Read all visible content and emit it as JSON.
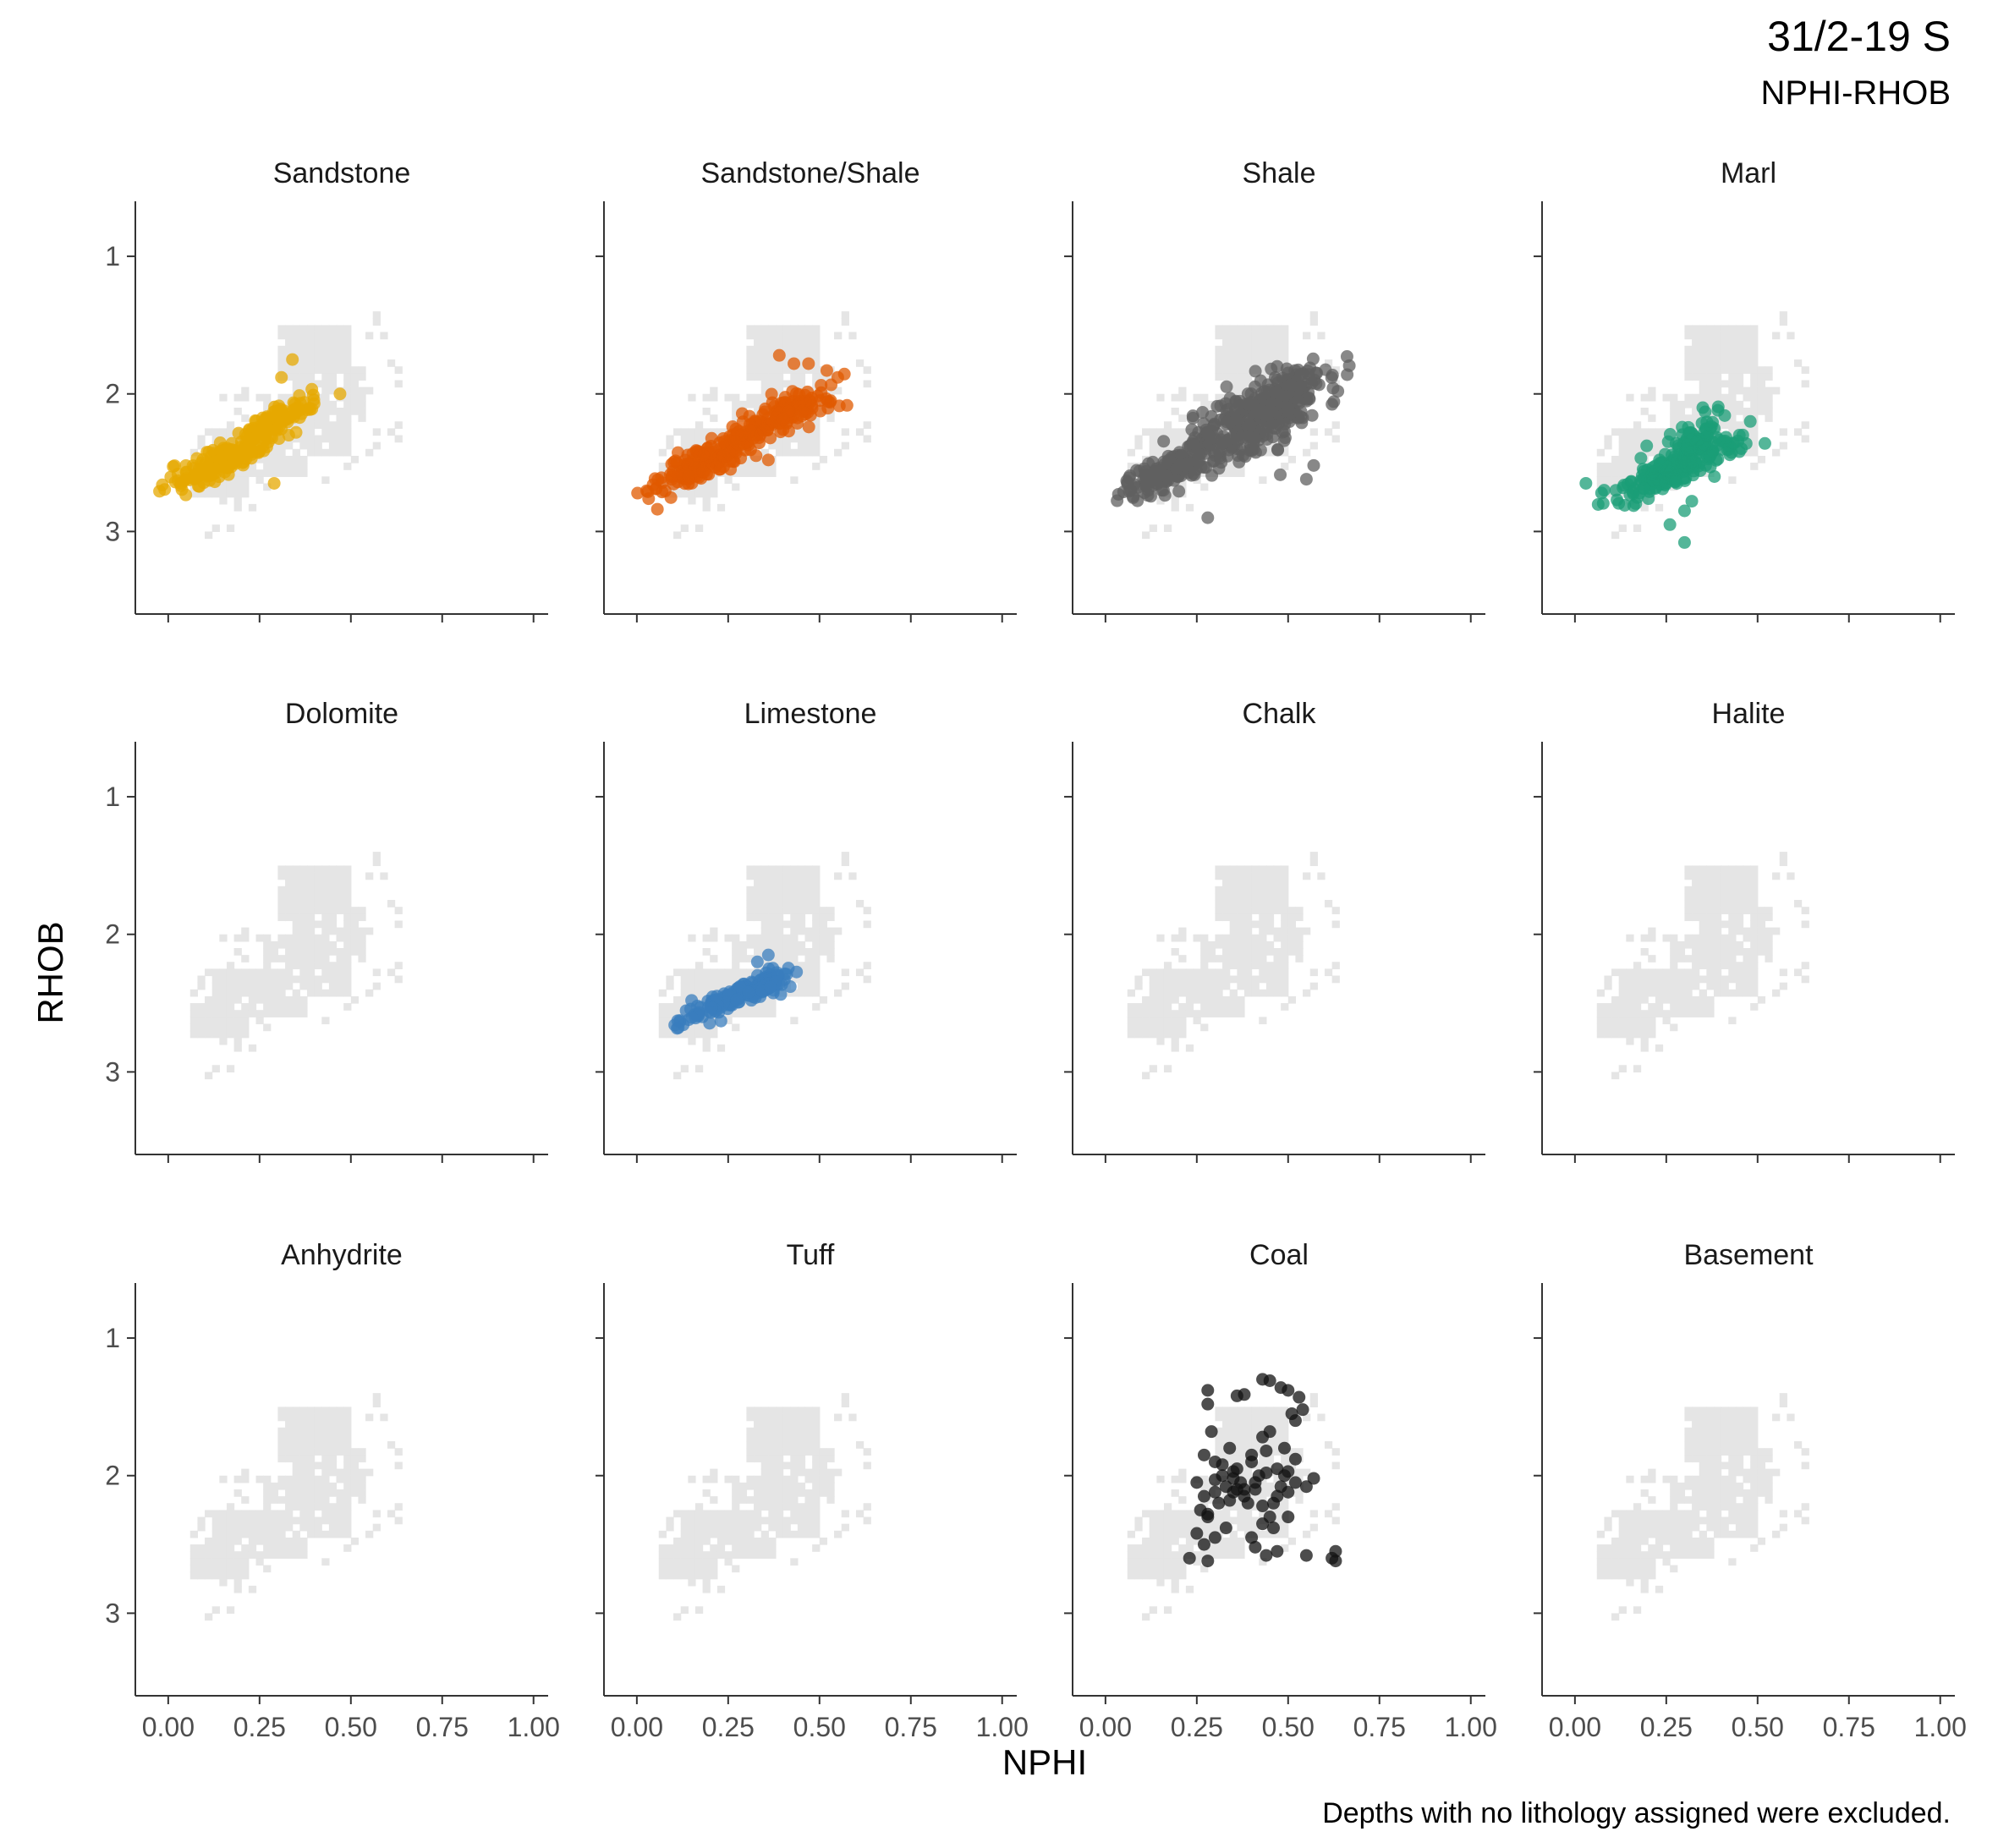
{
  "title": "31/2-19 S",
  "subtitle": "NPHI-RHOB",
  "caption": "Depths with no lithology assigned were excluded.",
  "chart_data": {
    "type": "scatter",
    "facet_layout": {
      "rows": 3,
      "cols": 4
    },
    "xlabel": "NPHI",
    "ylabel": "RHOB",
    "xlim": [
      -0.09,
      1.04
    ],
    "ylim": [
      3.6,
      0.6
    ],
    "y_reversed": true,
    "x_ticks": [
      0.0,
      0.25,
      0.5,
      0.75,
      1.0
    ],
    "x_tick_labels": [
      "0.00",
      "0.25",
      "0.50",
      "0.75",
      "1.00"
    ],
    "y_ticks": [
      1,
      2,
      3
    ],
    "y_tick_labels": [
      "1",
      "2",
      "3"
    ],
    "grid": false,
    "background_color": "#e5e5e5",
    "background_description_region": [
      [
        0.06,
        2.5,
        0.22,
        2.75
      ],
      [
        0.12,
        2.25,
        0.38,
        2.6
      ],
      [
        0.25,
        2.0,
        0.5,
        2.45
      ],
      [
        0.35,
        1.8,
        0.55,
        2.2
      ],
      [
        0.3,
        1.5,
        0.5,
        1.9
      ]
    ],
    "facets": [
      {
        "name": "Sandstone",
        "color": "#E6A800",
        "clusters": [
          {
            "cx": 0.13,
            "cy": 2.52,
            "sx": 0.06,
            "sy": 0.08,
            "n": 120
          },
          {
            "cx": 0.3,
            "cy": 2.18,
            "sx": 0.05,
            "sy": 0.06,
            "n": 80
          },
          {
            "cx": 0.22,
            "cy": 2.38,
            "sx": 0.05,
            "sy": 0.08,
            "n": 60
          }
        ],
        "points": [
          [
            0.34,
            1.75
          ],
          [
            0.31,
            1.88
          ],
          [
            0.33,
            2.3
          ],
          [
            0.29,
            2.65
          ],
          [
            0.35,
            2.28
          ]
        ]
      },
      {
        "name": "Sandstone/Shale",
        "color": "#E05A00",
        "clusters": [
          {
            "cx": 0.15,
            "cy": 2.55,
            "sx": 0.07,
            "sy": 0.08,
            "n": 120
          },
          {
            "cx": 0.4,
            "cy": 2.15,
            "sx": 0.07,
            "sy": 0.1,
            "n": 120
          },
          {
            "cx": 0.25,
            "cy": 2.4,
            "sx": 0.06,
            "sy": 0.08,
            "n": 60
          }
        ],
        "points": [
          [
            0.39,
            1.72
          ],
          [
            0.43,
            1.78
          ],
          [
            0.52,
            1.83
          ],
          [
            0.47,
            1.78
          ],
          [
            0.55,
            1.88
          ],
          [
            0.36,
            2.48
          ]
        ]
      },
      {
        "name": "Shale",
        "color": "#606060",
        "clusters": [
          {
            "cx": 0.18,
            "cy": 2.55,
            "sx": 0.08,
            "sy": 0.1,
            "n": 160
          },
          {
            "cx": 0.4,
            "cy": 2.2,
            "sx": 0.09,
            "sy": 0.18,
            "n": 260
          },
          {
            "cx": 0.5,
            "cy": 1.98,
            "sx": 0.05,
            "sy": 0.1,
            "n": 100
          }
        ],
        "points": [
          [
            0.57,
            2.52
          ],
          [
            0.55,
            2.62
          ],
          [
            0.28,
            2.9
          ],
          [
            0.47,
            1.8
          ]
        ]
      },
      {
        "name": "Marl",
        "color": "#1B9E77",
        "clusters": [
          {
            "cx": 0.27,
            "cy": 2.55,
            "sx": 0.08,
            "sy": 0.08,
            "n": 200
          },
          {
            "cx": 0.32,
            "cy": 2.35,
            "sx": 0.04,
            "sy": 0.1,
            "n": 60
          }
        ],
        "points": [
          [
            0.03,
            2.65
          ],
          [
            0.08,
            2.7
          ],
          [
            0.26,
            2.95
          ],
          [
            0.3,
            3.08
          ],
          [
            0.3,
            2.85
          ],
          [
            0.32,
            2.78
          ],
          [
            0.45,
            2.42
          ],
          [
            0.48,
            2.2
          ],
          [
            0.52,
            2.36
          ],
          [
            0.45,
            2.3
          ],
          [
            0.35,
            2.1
          ]
        ]
      },
      {
        "name": "Dolomite",
        "color": "#888888",
        "clusters": [],
        "points": []
      },
      {
        "name": "Limestone",
        "color": "#3A7DBE",
        "clusters": [
          {
            "cx": 0.27,
            "cy": 2.45,
            "sx": 0.07,
            "sy": 0.05,
            "n": 180
          },
          {
            "cx": 0.36,
            "cy": 2.38,
            "sx": 0.03,
            "sy": 0.05,
            "n": 30
          }
        ],
        "points": [
          [
            0.36,
            2.15
          ],
          [
            0.42,
            2.38
          ],
          [
            0.15,
            2.48
          ],
          [
            0.33,
            2.2
          ]
        ]
      },
      {
        "name": "Chalk",
        "color": "#888888",
        "clusters": [],
        "points": []
      },
      {
        "name": "Halite",
        "color": "#888888",
        "clusters": [],
        "points": []
      },
      {
        "name": "Anhydrite",
        "color": "#888888",
        "clusters": [],
        "points": []
      },
      {
        "name": "Tuff",
        "color": "#888888",
        "clusters": [],
        "points": []
      },
      {
        "name": "Coal",
        "color": "#111111",
        "clusters": [],
        "points": [
          [
            0.28,
            1.38
          ],
          [
            0.28,
            1.48
          ],
          [
            0.36,
            1.42
          ],
          [
            0.38,
            1.41
          ],
          [
            0.43,
            1.3
          ],
          [
            0.45,
            1.31
          ],
          [
            0.48,
            1.36
          ],
          [
            0.5,
            1.38
          ],
          [
            0.53,
            1.43
          ],
          [
            0.54,
            1.52
          ],
          [
            0.52,
            1.6
          ],
          [
            0.29,
            1.68
          ],
          [
            0.27,
            1.85
          ],
          [
            0.32,
            1.92
          ],
          [
            0.3,
            2.03
          ],
          [
            0.33,
            2.08
          ],
          [
            0.35,
            1.97
          ],
          [
            0.38,
            2.1
          ],
          [
            0.4,
            1.9
          ],
          [
            0.41,
            2.05
          ],
          [
            0.43,
            1.72
          ],
          [
            0.45,
            1.68
          ],
          [
            0.44,
            1.82
          ],
          [
            0.47,
            1.95
          ],
          [
            0.49,
            1.8
          ],
          [
            0.48,
            2.08
          ],
          [
            0.5,
            1.97
          ],
          [
            0.52,
            2.05
          ],
          [
            0.52,
            1.88
          ],
          [
            0.45,
            2.3
          ],
          [
            0.43,
            2.22
          ],
          [
            0.46,
            2.38
          ],
          [
            0.41,
            2.52
          ],
          [
            0.44,
            2.58
          ],
          [
            0.47,
            2.55
          ],
          [
            0.5,
            2.3
          ],
          [
            0.36,
            2.1
          ],
          [
            0.25,
            2.05
          ],
          [
            0.27,
            2.15
          ],
          [
            0.3,
            2.12
          ],
          [
            0.34,
            2.18
          ],
          [
            0.26,
            2.25
          ],
          [
            0.28,
            2.3
          ],
          [
            0.25,
            2.42
          ],
          [
            0.27,
            2.5
          ],
          [
            0.23,
            2.6
          ],
          [
            0.28,
            2.62
          ],
          [
            0.3,
            2.45
          ],
          [
            0.33,
            2.38
          ],
          [
            0.35,
            2.12
          ],
          [
            0.37,
            2.05
          ],
          [
            0.39,
            2.2
          ],
          [
            0.42,
            2.0
          ],
          [
            0.43,
            2.35
          ],
          [
            0.46,
            2.2
          ],
          [
            0.4,
            1.85
          ],
          [
            0.5,
            2.12
          ],
          [
            0.55,
            2.08
          ],
          [
            0.57,
            2.02
          ],
          [
            0.55,
            2.58
          ],
          [
            0.63,
            2.55
          ],
          [
            0.63,
            2.62
          ],
          [
            0.62,
            2.6
          ],
          [
            0.32,
            2.0
          ],
          [
            0.35,
            2.02
          ],
          [
            0.31,
            2.2
          ],
          [
            0.38,
            2.15
          ],
          [
            0.41,
            2.1
          ],
          [
            0.47,
            2.15
          ],
          [
            0.49,
            2.0
          ],
          [
            0.51,
            1.55
          ],
          [
            0.44,
            1.98
          ],
          [
            0.34,
            1.8
          ],
          [
            0.36,
            1.95
          ],
          [
            0.3,
            1.9
          ],
          [
            0.28,
            2.28
          ],
          [
            0.4,
            2.45
          ]
        ]
      },
      {
        "name": "Basement",
        "color": "#888888",
        "clusters": [],
        "points": []
      }
    ]
  }
}
